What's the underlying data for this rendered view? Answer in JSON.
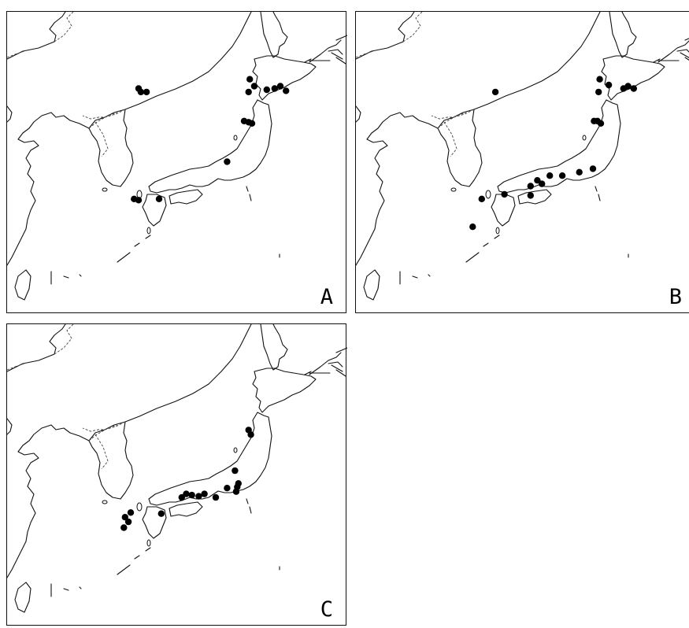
{
  "panels": [
    {
      "id": "A",
      "label": "A",
      "sites": [
        {
          "lon": 131.6,
          "lat": 43.4
        },
        {
          "lon": 131.8,
          "lat": 43.1
        },
        {
          "lon": 132.3,
          "lat": 43.1
        },
        {
          "lon": 141.4,
          "lat": 44.2
        },
        {
          "lon": 141.8,
          "lat": 43.6
        },
        {
          "lon": 141.3,
          "lat": 43.1
        },
        {
          "lon": 142.9,
          "lat": 43.3
        },
        {
          "lon": 143.6,
          "lat": 43.4
        },
        {
          "lon": 144.1,
          "lat": 43.6
        },
        {
          "lon": 144.6,
          "lat": 43.2
        },
        {
          "lon": 140.9,
          "lat": 40.6
        },
        {
          "lon": 141.3,
          "lat": 40.5
        },
        {
          "lon": 141.6,
          "lat": 40.4
        },
        {
          "lon": 139.4,
          "lat": 37.1
        },
        {
          "lon": 131.2,
          "lat": 33.9
        },
        {
          "lon": 131.6,
          "lat": 33.8
        },
        {
          "lon": 133.4,
          "lat": 33.9
        }
      ]
    },
    {
      "id": "B",
      "label": "B",
      "sites": [
        {
          "lon": 132.3,
          "lat": 43.1
        },
        {
          "lon": 141.5,
          "lat": 44.2
        },
        {
          "lon": 142.3,
          "lat": 43.7
        },
        {
          "lon": 141.4,
          "lat": 43.1
        },
        {
          "lon": 143.6,
          "lat": 43.4
        },
        {
          "lon": 144.0,
          "lat": 43.6
        },
        {
          "lon": 144.5,
          "lat": 43.4
        },
        {
          "lon": 141.0,
          "lat": 40.6
        },
        {
          "lon": 141.3,
          "lat": 40.6
        },
        {
          "lon": 141.6,
          "lat": 40.4
        },
        {
          "lon": 140.9,
          "lat": 36.5
        },
        {
          "lon": 139.7,
          "lat": 36.2
        },
        {
          "lon": 138.2,
          "lat": 35.9
        },
        {
          "lon": 137.1,
          "lat": 35.9
        },
        {
          "lon": 136.0,
          "lat": 35.5
        },
        {
          "lon": 136.4,
          "lat": 35.2
        },
        {
          "lon": 135.4,
          "lat": 35.0
        },
        {
          "lon": 135.4,
          "lat": 34.2
        },
        {
          "lon": 133.1,
          "lat": 34.3
        },
        {
          "lon": 131.1,
          "lat": 33.9
        },
        {
          "lon": 130.3,
          "lat": 31.5
        }
      ]
    },
    {
      "id": "C",
      "label": "C",
      "sites": [
        {
          "lon": 141.3,
          "lat": 40.9
        },
        {
          "lon": 141.5,
          "lat": 40.5
        },
        {
          "lon": 140.1,
          "lat": 37.4
        },
        {
          "lon": 140.4,
          "lat": 36.3
        },
        {
          "lon": 140.3,
          "lat": 36.0
        },
        {
          "lon": 140.2,
          "lat": 35.6
        },
        {
          "lon": 139.4,
          "lat": 35.9
        },
        {
          "lon": 138.4,
          "lat": 35.1
        },
        {
          "lon": 137.4,
          "lat": 35.4
        },
        {
          "lon": 136.9,
          "lat": 35.2
        },
        {
          "lon": 136.3,
          "lat": 35.3
        },
        {
          "lon": 135.8,
          "lat": 35.4
        },
        {
          "lon": 135.4,
          "lat": 35.1
        },
        {
          "lon": 133.6,
          "lat": 33.7
        },
        {
          "lon": 130.9,
          "lat": 33.8
        },
        {
          "lon": 130.4,
          "lat": 33.4
        },
        {
          "lon": 130.7,
          "lat": 33.0
        },
        {
          "lon": 130.3,
          "lat": 32.5
        }
      ]
    }
  ]
}
